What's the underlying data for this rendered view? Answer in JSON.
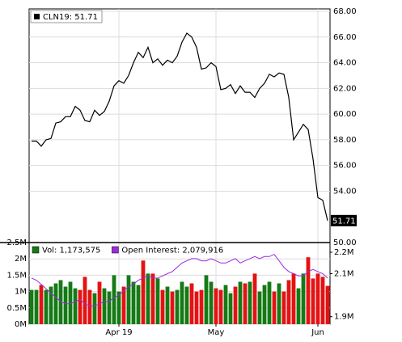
{
  "chart_data": [
    {
      "type": "line",
      "legend": "CLN19: 51.71",
      "series": [
        {
          "name": "CLN19",
          "color": "#000000",
          "values": [
            57.9,
            57.9,
            57.5,
            58.0,
            58.1,
            59.3,
            59.4,
            59.8,
            59.8,
            60.6,
            60.3,
            59.5,
            59.4,
            60.3,
            59.9,
            60.2,
            61.0,
            62.2,
            62.6,
            62.4,
            63.0,
            64.0,
            64.8,
            64.4,
            65.2,
            64.0,
            64.3,
            63.8,
            64.2,
            64.0,
            64.5,
            65.6,
            66.3,
            66.0,
            65.2,
            63.5,
            63.6,
            64.0,
            63.7,
            61.9,
            62.0,
            62.3,
            61.6,
            62.2,
            61.7,
            61.7,
            61.3,
            62.0,
            62.4,
            63.1,
            62.9,
            63.2,
            63.1,
            61.3,
            58.0,
            58.6,
            59.2,
            58.8,
            56.5,
            53.5,
            53.3,
            51.71
          ]
        }
      ],
      "ylim": [
        50,
        68
      ],
      "yticks": [
        {
          "value": 68,
          "label": "68.00"
        },
        {
          "value": 66,
          "label": "66.00"
        },
        {
          "value": 64,
          "label": "64.00"
        },
        {
          "value": 62,
          "label": "62.00"
        },
        {
          "value": 60,
          "label": "60.00"
        },
        {
          "value": 58,
          "label": "58.00"
        },
        {
          "value": 56,
          "label": "56.00"
        },
        {
          "value": 54,
          "label": "54.00"
        },
        {
          "value": 50,
          "label": "50.00"
        }
      ],
      "grid": true
    },
    {
      "type": "bar",
      "categories": [
        null,
        null,
        null,
        null,
        null,
        null,
        null,
        null,
        null,
        null,
        null,
        null,
        null,
        null,
        null,
        null,
        null,
        null,
        "Apr 19",
        null,
        null,
        null,
        null,
        null,
        null,
        null,
        null,
        null,
        null,
        null,
        null,
        null,
        null,
        null,
        null,
        null,
        null,
        null,
        "May",
        null,
        null,
        null,
        null,
        null,
        null,
        null,
        null,
        null,
        null,
        null,
        null,
        null,
        null,
        null,
        null,
        null,
        null,
        null,
        null,
        "Jun",
        null,
        null
      ],
      "series": [
        {
          "name": "Vol: 1,173,575",
          "up_color": "#157a15",
          "down_color": "#e31313",
          "values": [
            1050000,
            1050000,
            1200000,
            1050000,
            1150000,
            1250000,
            1350000,
            1150000,
            1300000,
            1100000,
            1050000,
            1450000,
            1050000,
            950000,
            1300000,
            1100000,
            1000000,
            1500000,
            1000000,
            1150000,
            1500000,
            1300000,
            1200000,
            1950000,
            1550000,
            1550000,
            1400000,
            1050000,
            1150000,
            1000000,
            1050000,
            1300000,
            1150000,
            1250000,
            1000000,
            1050000,
            1500000,
            1300000,
            1100000,
            1050000,
            1200000,
            950000,
            1150000,
            1300000,
            1250000,
            1300000,
            1550000,
            1000000,
            1200000,
            1300000,
            1000000,
            1250000,
            1000000,
            1350000,
            1550000,
            1100000,
            1550000,
            2050000,
            1400000,
            1550000,
            1450000,
            1173575
          ]
        },
        {
          "name": "Open Interest: 2,079,916",
          "color": "#9a2be0",
          "axis": "y2",
          "values": [
            2080000,
            2070000,
            2050000,
            2030000,
            2010000,
            1990000,
            1970000,
            1960000,
            1960000,
            1970000,
            1980000,
            1960000,
            1950000,
            1950000,
            1960000,
            1970000,
            1970000,
            1990000,
            2000000,
            2020000,
            2040000,
            2050000,
            2070000,
            2080000,
            2090000,
            2080000,
            2080000,
            2090000,
            2100000,
            2110000,
            2130000,
            2150000,
            2160000,
            2170000,
            2170000,
            2160000,
            2160000,
            2170000,
            2160000,
            2150000,
            2150000,
            2160000,
            2170000,
            2150000,
            2160000,
            2170000,
            2180000,
            2170000,
            2180000,
            2180000,
            2190000,
            2160000,
            2130000,
            2110000,
            2100000,
            2090000,
            2090000,
            2110000,
            2120000,
            2110000,
            2100000,
            2079916
          ]
        }
      ],
      "ylim": [
        0,
        2500000
      ],
      "yticks": [
        {
          "value": 2500000,
          "label": "2.5M"
        },
        {
          "value": 2000000,
          "label": "2M"
        },
        {
          "value": 1500000,
          "label": "1.5M"
        },
        {
          "value": 1000000,
          "label": "1M"
        },
        {
          "value": 500000,
          "label": "0.5M"
        },
        {
          "value": 0,
          "label": "0M"
        }
      ],
      "y2lim": [
        1865000,
        2245000
      ],
      "y2ticks": [
        {
          "value": 2200000,
          "label": "2.2M"
        },
        {
          "value": 2100000,
          "label": "2.1M"
        },
        {
          "value": 1900000,
          "label": "1.9M"
        }
      ],
      "grid": true
    }
  ]
}
